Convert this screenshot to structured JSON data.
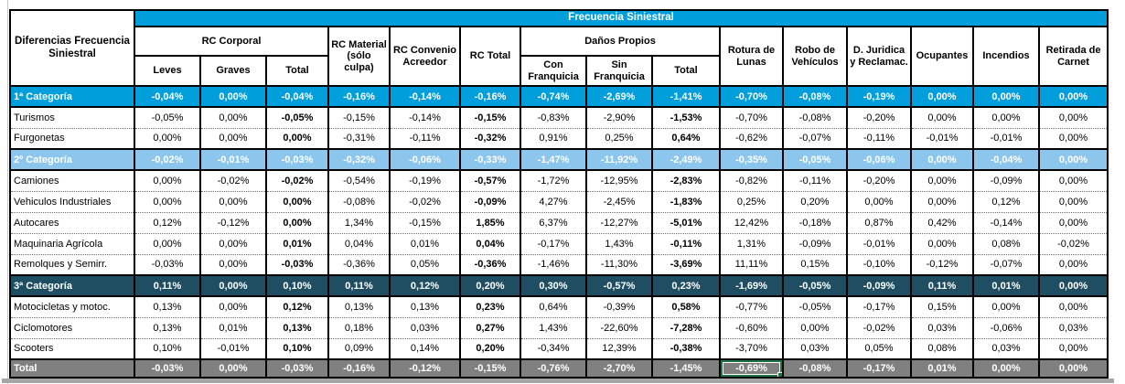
{
  "colors": {
    "header_blue": "#009FDB",
    "category2_light_blue": "#8CC6EC",
    "category3_dark_blue": "#1F4E63",
    "total_gray": "#808080",
    "selection_green": "#217346"
  },
  "table": {
    "headers": {
      "corner": "Diferencias Frecuencia Siniestral",
      "main": "Frecuencia Siniestral",
      "rc_corporal": "RC Corporal",
      "rc_material": "RC Material (sólo culpa)",
      "rc_convenio": "RC Convenio Acreedor",
      "rc_total": "RC Total",
      "danos_propios": "Daños Propios",
      "rotura_lunas": "Rotura de Lunas",
      "robo_vehiculos": "Robo de Vehículos",
      "d_juridica": "D. Juridica y Reclamac.",
      "ocupantes": "Ocupantes",
      "incendios": "Incendios",
      "retirada_carnet": "Retirada de Carnet",
      "leves": "Leves",
      "graves": "Graves",
      "total_rc_corporal": "Total",
      "con_franquicia": "Con Franquicia",
      "sin_franquicia": "Sin Franquicia",
      "total_danos": "Total"
    },
    "bold_value_columns": [
      2,
      5,
      8
    ],
    "rows": [
      {
        "label": "1ª Categoría",
        "type": "cat1",
        "values": [
          "-0,04%",
          "0,00%",
          "-0,04%",
          "-0,16%",
          "-0,14%",
          "-0,16%",
          "-0,74%",
          "-2,69%",
          "-1,41%",
          "-0,70%",
          "-0,08%",
          "-0,19%",
          "0,00%",
          "0,00%",
          "0,00%"
        ]
      },
      {
        "label": "Turismos",
        "type": "normal",
        "values": [
          "-0,05%",
          "0,00%",
          "-0,05%",
          "-0,15%",
          "-0,14%",
          "-0,15%",
          "-0,83%",
          "-2,90%",
          "-1,53%",
          "-0,70%",
          "-0,08%",
          "-0,20%",
          "0,00%",
          "0,00%",
          "0,00%"
        ]
      },
      {
        "label": "Furgonetas",
        "type": "normal",
        "values": [
          "0,00%",
          "0,00%",
          "0,00%",
          "-0,31%",
          "-0,11%",
          "-0,32%",
          "0,91%",
          "0,25%",
          "0,64%",
          "-0,62%",
          "-0,07%",
          "-0,11%",
          "-0,01%",
          "-0,01%",
          "0,00%"
        ]
      },
      {
        "label": "2º Categoría",
        "type": "cat2",
        "values": [
          "-0,02%",
          "-0,01%",
          "-0,03%",
          "-0,32%",
          "-0,06%",
          "-0,33%",
          "-1,47%",
          "-11,92%",
          "-2,49%",
          "-0,35%",
          "-0,05%",
          "-0,06%",
          "0,00%",
          "-0,04%",
          "0,00%"
        ]
      },
      {
        "label": "Camiones",
        "type": "normal",
        "values": [
          "0,00%",
          "-0,02%",
          "-0,02%",
          "-0,54%",
          "-0,19%",
          "-0,57%",
          "-1,72%",
          "-12,95%",
          "-2,83%",
          "-0,82%",
          "-0,11%",
          "-0,20%",
          "0,00%",
          "-0,09%",
          "0,00%"
        ]
      },
      {
        "label": "Vehiculos Industriales",
        "type": "normal",
        "values": [
          "0,00%",
          "0,00%",
          "0,00%",
          "-0,08%",
          "-0,02%",
          "-0,09%",
          "4,27%",
          "-2,45%",
          "-1,83%",
          "0,25%",
          "0,20%",
          "0,00%",
          "0,00%",
          "0,12%",
          "0,00%"
        ]
      },
      {
        "label": "Autocares",
        "type": "normal",
        "values": [
          "0,12%",
          "-0,12%",
          "0,00%",
          "1,34%",
          "-0,15%",
          "1,85%",
          "6,37%",
          "-12,27%",
          "-5,01%",
          "12,42%",
          "-0,18%",
          "0,87%",
          "0,42%",
          "-0,14%",
          "0,00%"
        ]
      },
      {
        "label": "Maquinaria Agrícola",
        "type": "normal",
        "values": [
          "0,00%",
          "0,00%",
          "0,01%",
          "0,04%",
          "0,01%",
          "0,04%",
          "-0,17%",
          "1,43%",
          "-0,11%",
          "1,31%",
          "-0,09%",
          "-0,01%",
          "0,00%",
          "0,08%",
          "-0,02%"
        ]
      },
      {
        "label": "Remolques y Semirr.",
        "type": "normal",
        "values": [
          "-0,03%",
          "0,00%",
          "-0,03%",
          "-0,36%",
          "0,05%",
          "-0,36%",
          "-1,46%",
          "-11,30%",
          "-3,69%",
          "11,11%",
          "0,15%",
          "-0,10%",
          "-0,12%",
          "-0,07%",
          "0,00%"
        ]
      },
      {
        "label": "3ª Categoría",
        "type": "cat3",
        "values": [
          "0,11%",
          "0,00%",
          "0,10%",
          "0,11%",
          "0,12%",
          "0,20%",
          "0,30%",
          "-0,57%",
          "0,23%",
          "-1,69%",
          "-0,05%",
          "-0,09%",
          "0,11%",
          "0,01%",
          "0,00%"
        ]
      },
      {
        "label": "Motocicletas y motoc.",
        "type": "normal",
        "values": [
          "0,13%",
          "0,00%",
          "0,12%",
          "0,13%",
          "0,13%",
          "0,23%",
          "0,64%",
          "-0,39%",
          "0,58%",
          "-0,77%",
          "-0,05%",
          "-0,17%",
          "0,15%",
          "0,00%",
          "0,00%"
        ]
      },
      {
        "label": "Ciclomotores",
        "type": "normal",
        "values": [
          "0,13%",
          "0,01%",
          "0,13%",
          "0,18%",
          "0,03%",
          "0,27%",
          "1,43%",
          "-22,60%",
          "-7,28%",
          "-0,60%",
          "0,00%",
          "-0,02%",
          "0,03%",
          "-0,06%",
          "0,03%"
        ]
      },
      {
        "label": "Scooters",
        "type": "normal",
        "values": [
          "0,10%",
          "-0,01%",
          "0,10%",
          "0,09%",
          "0,14%",
          "0,20%",
          "-0,34%",
          "12,39%",
          "-0,38%",
          "-3,70%",
          "0,03%",
          "0,05%",
          "0,08%",
          "0,03%",
          "0,00%"
        ]
      },
      {
        "label": "Total",
        "type": "total",
        "values": [
          "-0,03%",
          "0,00%",
          "-0,03%",
          "-0,16%",
          "-0,12%",
          "-0,15%",
          "-0,76%",
          "-2,70%",
          "-1,45%",
          "-0,69%",
          "-0,08%",
          "-0,17%",
          "0,01%",
          "0,00%",
          "0,00%"
        ]
      }
    ]
  },
  "selection": {
    "row_index": 13,
    "value_index": 9,
    "selected_value": "-0,69%"
  }
}
